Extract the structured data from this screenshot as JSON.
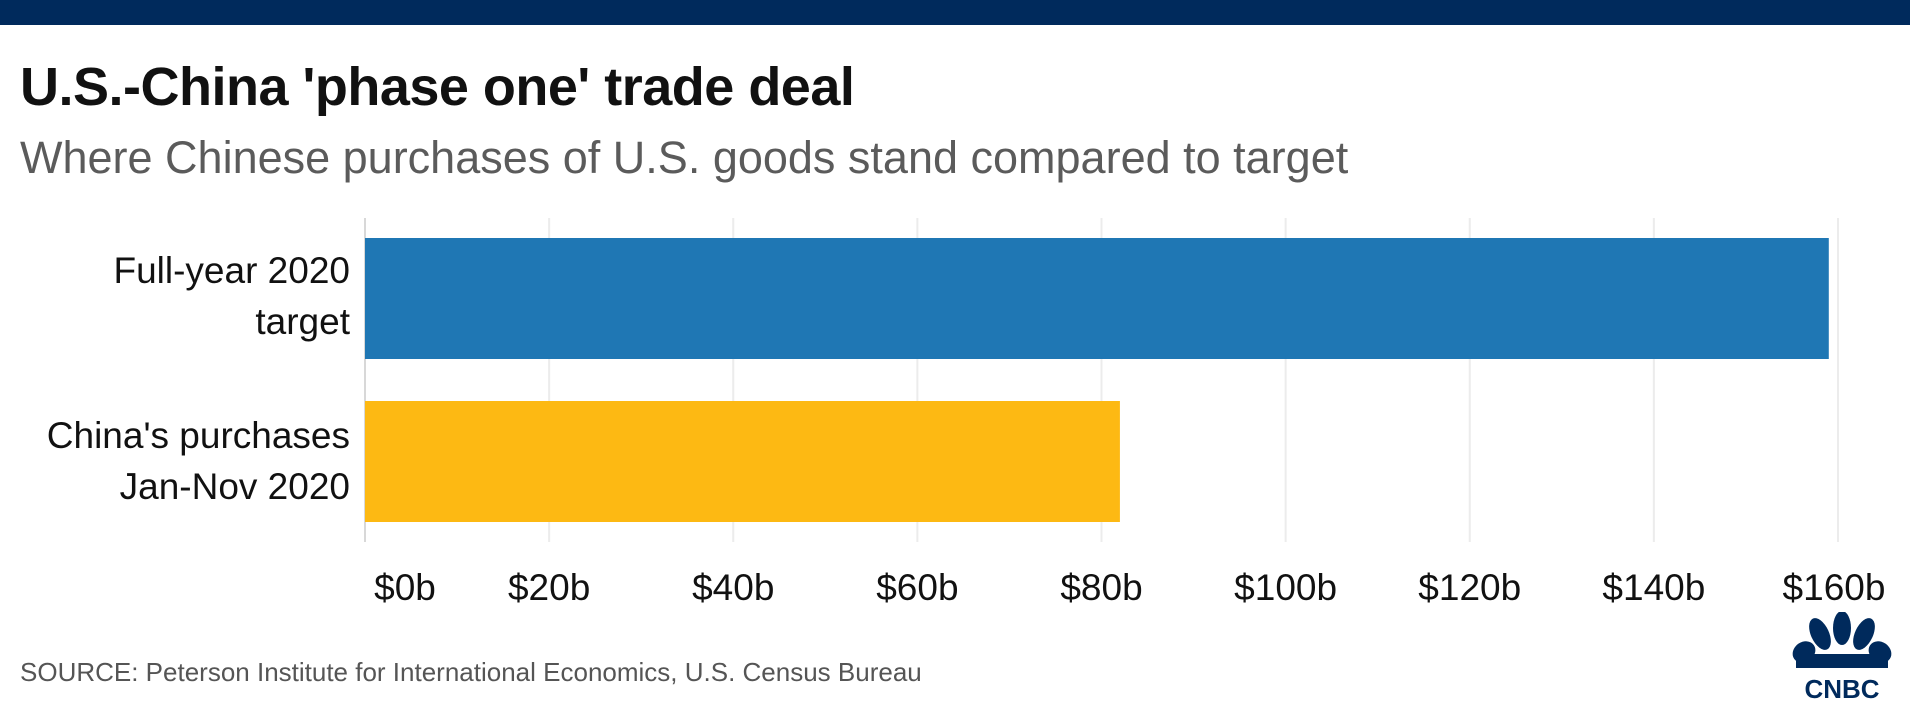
{
  "header": {
    "title": "U.S.-China 'phase one' trade deal",
    "subtitle": "Where Chinese purchases of U.S. goods stand compared to target"
  },
  "chart_data": {
    "type": "bar",
    "orientation": "horizontal",
    "categories": [
      [
        "Full-year 2020",
        "target"
      ],
      [
        "China's purchases",
        "Jan-Nov 2020"
      ]
    ],
    "values": [
      159,
      82
    ],
    "colors": [
      "#1f77b4",
      "#fdb913"
    ],
    "xlim": [
      0,
      160
    ],
    "xticks": [
      0,
      20,
      40,
      60,
      80,
      100,
      120,
      140,
      160
    ],
    "xtick_labels": [
      "$0b",
      "$20b",
      "$40b",
      "$60b",
      "$80b",
      "$100b",
      "$120b",
      "$140b",
      "$160b"
    ],
    "grid": true
  },
  "footer": {
    "source": "SOURCE: Peterson Institute for International Economics, U.S. Census Bureau",
    "logo_text": "CNBC"
  },
  "brand": {
    "topbar": "#002a5c",
    "logo": "#002a5c"
  }
}
